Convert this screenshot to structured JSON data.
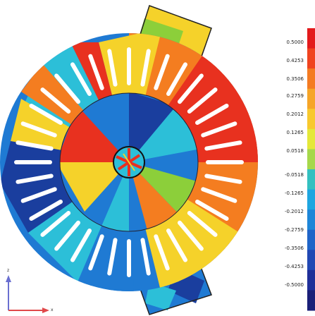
{
  "colorbar": {
    "labels": [
      "0.5000",
      "0.4253",
      "0.3506",
      "0.2759",
      "0.2012",
      "0.1265",
      "0.0518",
      "-0.0518",
      "-0.1265",
      "-0.2012",
      "-0.2759",
      "-0.3506",
      "-0.4253",
      "-0.5000"
    ],
    "colors": [
      "#e31a1c",
      "#f0431f",
      "#f47b22",
      "#f6a528",
      "#f8c92e",
      "#e4e83a",
      "#a6d84b",
      "#34c0c0",
      "#1fa6e0",
      "#1e86d8",
      "#1f64c8",
      "#2148b4",
      "#1f2f99",
      "#1a1f78"
    ]
  },
  "axes": {
    "vertical_label": "z",
    "horizontal_label": "x"
  },
  "field_colors": {
    "red": "#e8311f",
    "orange": "#f47d20",
    "yellow": "#f5d22a",
    "green": "#8ccf3a",
    "cyan": "#2cbfd8",
    "blue": "#1f7ad3",
    "darkblue": "#1a3e9e"
  }
}
